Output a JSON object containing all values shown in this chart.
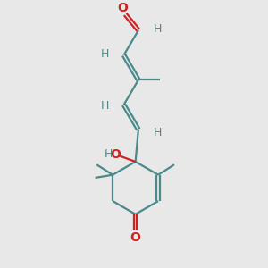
{
  "bg_color": "#e8e8e8",
  "bond_color": "#4a8a8a",
  "O_color": "#cc2222",
  "lw": 1.6,
  "dbl_sep": 0.055,
  "figsize": [
    3.0,
    3.0
  ],
  "dpi": 100,
  "xlim": [
    0,
    6
  ],
  "ylim": [
    0,
    9
  ]
}
